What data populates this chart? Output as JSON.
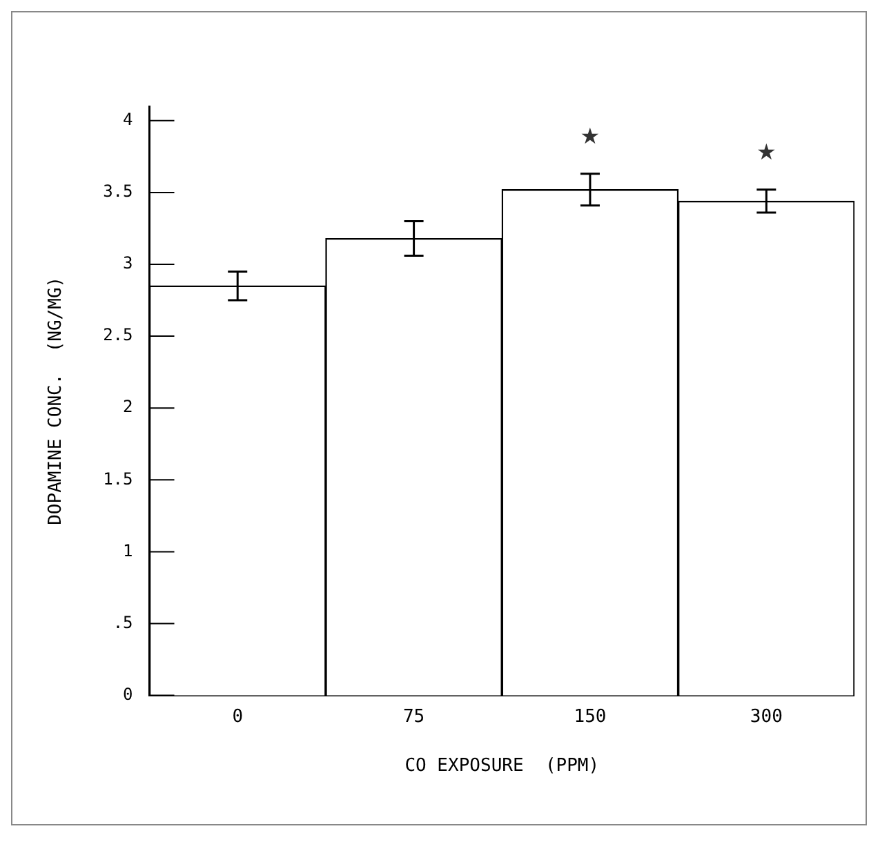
{
  "chart_data": {
    "type": "bar",
    "xlabel": "CO EXPOSURE  (PPM)",
    "ylabel": "DOPAMINE CONC.  (NG/MG)",
    "categories": [
      "0",
      "75",
      "150",
      "300"
    ],
    "values": [
      2.85,
      3.18,
      3.52,
      3.44
    ],
    "errors": [
      0.1,
      0.12,
      0.11,
      0.08
    ],
    "color": "#ffffff",
    "ylim": [
      0,
      4.1
    ],
    "yticks": [
      0,
      {
        "value": 0.5,
        "label": ".5"
      },
      1,
      1.5,
      2,
      2.5,
      3,
      3.5,
      4
    ],
    "grid": false,
    "annotations": [
      "★",
      "★"
    ]
  }
}
